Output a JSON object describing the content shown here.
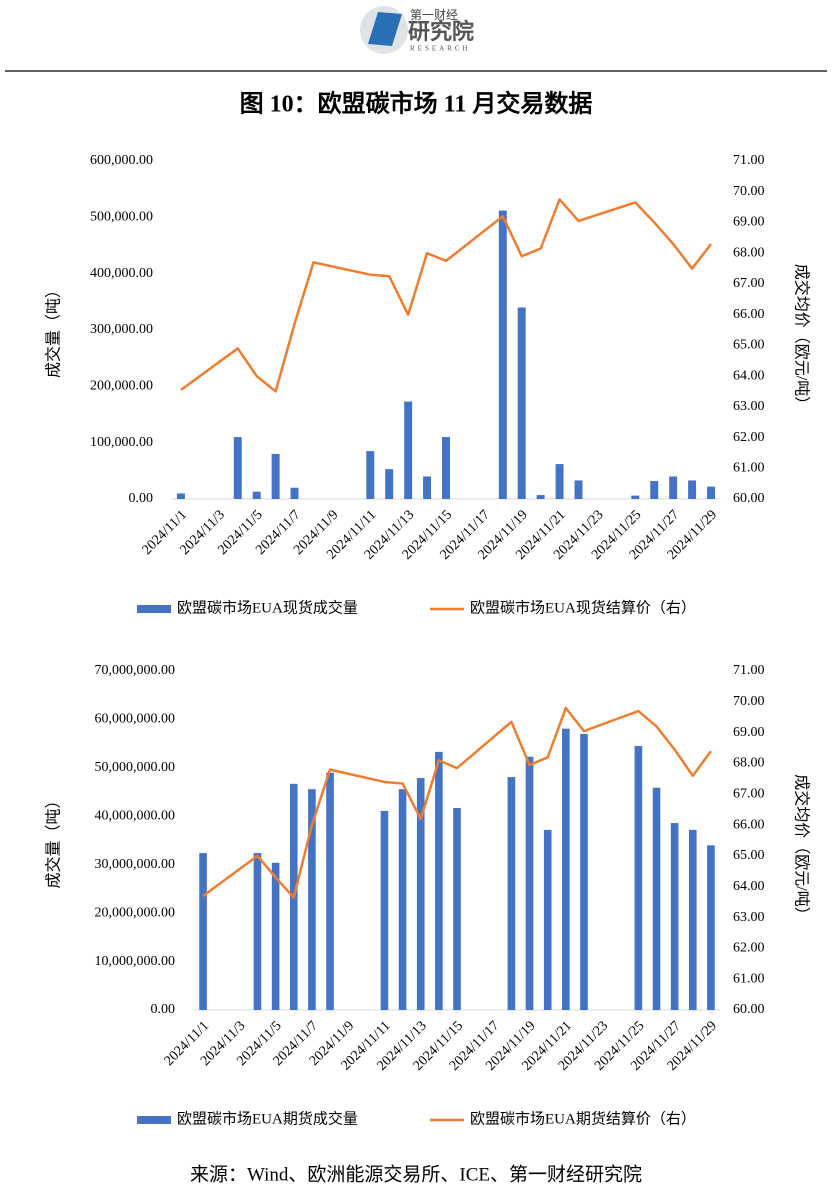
{
  "logo": {
    "name": "第一财经",
    "org": "研究院",
    "sub": "RESEARCH"
  },
  "title": "图 10：欧盟碳市场 11 月交易数据",
  "source": "来源：Wind、欧洲能源交易所、ICE、第一财经研究院",
  "chart_data": [
    {
      "type": "combo",
      "x": [
        "2024/11/1",
        "2024/11/4",
        "2024/11/5",
        "2024/11/6",
        "2024/11/7",
        "2024/11/8",
        "2024/11/11",
        "2024/11/12",
        "2024/11/13",
        "2024/11/14",
        "2024/11/15",
        "2024/11/18",
        "2024/11/19",
        "2024/11/20",
        "2024/11/21",
        "2024/11/22",
        "2024/11/25",
        "2024/11/26",
        "2024/11/27",
        "2024/11/28",
        "2024/11/29"
      ],
      "xlim": [
        "2024/11/1",
        "2024/11/29"
      ],
      "xticks": [
        "2024/11/1",
        "2024/11/3",
        "2024/11/5",
        "2024/11/7",
        "2024/11/9",
        "2024/11/11",
        "2024/11/13",
        "2024/11/15",
        "2024/11/17",
        "2024/11/19",
        "2024/11/21",
        "2024/11/23",
        "2024/11/25",
        "2024/11/27",
        "2024/11/29"
      ],
      "ylabel": "成交量（吨）",
      "y2label": "成交均价（欧元/吨）",
      "ylim": [
        0,
        600000
      ],
      "yticks": [
        {
          "value": 0,
          "label": "0.00"
        },
        {
          "value": 100000,
          "label": "100,000.00"
        },
        {
          "value": 200000,
          "label": "200,000.00"
        },
        {
          "value": 300000,
          "label": "300,000.00"
        },
        {
          "value": 400000,
          "label": "400,000.00"
        },
        {
          "value": 500000,
          "label": "500,000.00"
        },
        {
          "value": 600000,
          "label": "600,000.00"
        }
      ],
      "y2lim": [
        60,
        71
      ],
      "y2ticks": [
        {
          "value": 60,
          "label": "60.00"
        },
        {
          "value": 61,
          "label": "61.00"
        },
        {
          "value": 62,
          "label": "62.00"
        },
        {
          "value": 63,
          "label": "63.00"
        },
        {
          "value": 64,
          "label": "64.00"
        },
        {
          "value": 65,
          "label": "65.00"
        },
        {
          "value": 66,
          "label": "66.00"
        },
        {
          "value": 67,
          "label": "67.00"
        },
        {
          "value": 68,
          "label": "68.00"
        },
        {
          "value": 69,
          "label": "69.00"
        },
        {
          "value": 70,
          "label": "70.00"
        },
        {
          "value": 71,
          "label": "71.00"
        }
      ],
      "series": [
        {
          "name": "欧盟碳市场EUA现货成交量",
          "type": "bar",
          "color": "#4472c4",
          "axis": "y",
          "values": [
            10000,
            110000,
            13000,
            80000,
            20000,
            0,
            85000,
            53000,
            173000,
            40000,
            110000,
            512000,
            340000,
            7000,
            62000,
            33000,
            6000,
            32000,
            40000,
            33000,
            22000
          ]
        },
        {
          "name": "欧盟碳市场EUA现货结算价（右）",
          "type": "line",
          "color": "#ed7d31",
          "axis": "y2",
          "values": [
            63.55,
            64.9,
            64.0,
            63.5,
            65.7,
            67.7,
            67.3,
            67.25,
            66.0,
            68.0,
            67.75,
            69.2,
            67.9,
            68.15,
            69.75,
            69.05,
            69.65,
            69.0,
            68.3,
            67.5,
            68.3
          ]
        }
      ]
    },
    {
      "type": "combo",
      "x": [
        "2024/11/1",
        "2024/11/4",
        "2024/11/5",
        "2024/11/6",
        "2024/11/7",
        "2024/11/8",
        "2024/11/11",
        "2024/11/12",
        "2024/11/13",
        "2024/11/14",
        "2024/11/15",
        "2024/11/18",
        "2024/11/19",
        "2024/11/20",
        "2024/11/21",
        "2024/11/22",
        "2024/11/25",
        "2024/11/26",
        "2024/11/27",
        "2024/11/28",
        "2024/11/29"
      ],
      "xlim": [
        "2024/11/1",
        "2024/11/29"
      ],
      "xticks": [
        "2024/11/1",
        "2024/11/3",
        "2024/11/5",
        "2024/11/7",
        "2024/11/9",
        "2024/11/11",
        "2024/11/13",
        "2024/11/15",
        "2024/11/17",
        "2024/11/19",
        "2024/11/21",
        "2024/11/23",
        "2024/11/25",
        "2024/11/27",
        "2024/11/29"
      ],
      "ylabel": "成交量（吨）",
      "y2label": "成交均价（欧元/吨）",
      "ylim": [
        0,
        70000000
      ],
      "yticks": [
        {
          "value": 0,
          "label": "0.00"
        },
        {
          "value": 10000000,
          "label": "10,000,000.00"
        },
        {
          "value": 20000000,
          "label": "20,000,000.00"
        },
        {
          "value": 30000000,
          "label": "30,000,000.00"
        },
        {
          "value": 40000000,
          "label": "40,000,000.00"
        },
        {
          "value": 50000000,
          "label": "50,000,000.00"
        },
        {
          "value": 60000000,
          "label": "60,000,000.00"
        },
        {
          "value": 70000000,
          "label": "70,000,000.00"
        }
      ],
      "y2lim": [
        60,
        71
      ],
      "y2ticks": [
        {
          "value": 60,
          "label": "60.00"
        },
        {
          "value": 61,
          "label": "61.00"
        },
        {
          "value": 62,
          "label": "62.00"
        },
        {
          "value": 63,
          "label": "63.00"
        },
        {
          "value": 64,
          "label": "64.00"
        },
        {
          "value": 65,
          "label": "65.00"
        },
        {
          "value": 66,
          "label": "66.00"
        },
        {
          "value": 67,
          "label": "67.00"
        },
        {
          "value": 68,
          "label": "68.00"
        },
        {
          "value": 69,
          "label": "69.00"
        },
        {
          "value": 70,
          "label": "70.00"
        },
        {
          "value": 71,
          "label": "71.00"
        }
      ],
      "series": [
        {
          "name": "欧盟碳市场EUA期货成交量",
          "type": "bar",
          "color": "#4472c4",
          "axis": "y",
          "values": [
            32400000,
            32400000,
            30400000,
            46700000,
            45600000,
            49000000,
            41100000,
            45600000,
            47900000,
            53300000,
            41700000,
            48100000,
            52300000,
            37200000,
            58100000,
            57000000,
            54500000,
            45900000,
            38600000,
            37200000,
            34000000
          ]
        },
        {
          "name": "欧盟碳市场EUA期货结算价（右）",
          "type": "line",
          "color": "#ed7d31",
          "axis": "y2",
          "values": [
            63.7,
            65.0,
            64.3,
            63.65,
            66.0,
            67.8,
            67.4,
            67.35,
            66.2,
            68.1,
            67.85,
            69.35,
            67.95,
            68.2,
            69.8,
            69.05,
            69.7,
            69.2,
            68.45,
            67.6,
            68.4
          ]
        }
      ]
    }
  ]
}
